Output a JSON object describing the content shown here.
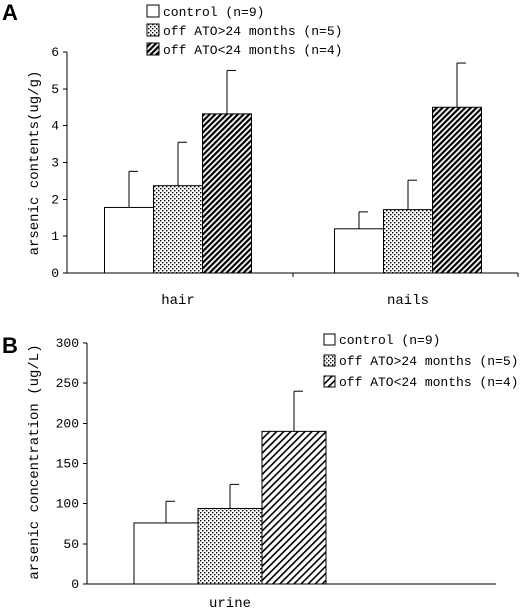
{
  "chart_data": [
    {
      "panel": "A",
      "type": "bar",
      "ylabel": "arsenic contents(ug/g)",
      "xlabel": "",
      "ylim": [
        0,
        6
      ],
      "yticks": [
        0,
        1,
        2,
        3,
        4,
        5,
        6
      ],
      "categories": [
        "hair",
        "nails"
      ],
      "legend_position": "top-center",
      "series": [
        {
          "name": "control (n=9)",
          "fill": "white",
          "values": [
            1.78,
            1.2
          ],
          "errors": [
            0.98,
            0.46
          ]
        },
        {
          "name": "off ATO>24 months (n=5)",
          "fill": "dotted",
          "values": [
            2.37,
            1.72
          ],
          "errors": [
            1.18,
            0.8
          ]
        },
        {
          "name": "off ATO<24 months (n=4)",
          "fill": "dense-hatch",
          "values": [
            4.32,
            4.5
          ],
          "errors": [
            1.18,
            1.2
          ]
        }
      ]
    },
    {
      "panel": "B",
      "type": "bar",
      "ylabel": "arsenic concentration (ug/L)",
      "xlabel": "",
      "ylim": [
        0,
        300
      ],
      "yticks": [
        0,
        50,
        100,
        150,
        200,
        250,
        300
      ],
      "categories": [
        "urine"
      ],
      "legend_position": "top-right",
      "series": [
        {
          "name": "control (n=9)",
          "fill": "white",
          "values": [
            76
          ],
          "errors": [
            27
          ]
        },
        {
          "name": "off ATO>24 months (n=5)",
          "fill": "dotted",
          "values": [
            94
          ],
          "errors": [
            30
          ]
        },
        {
          "name": "off ATO<24 months (n=4)",
          "fill": "hatch",
          "values": [
            190
          ],
          "errors": [
            50
          ]
        }
      ]
    }
  ]
}
